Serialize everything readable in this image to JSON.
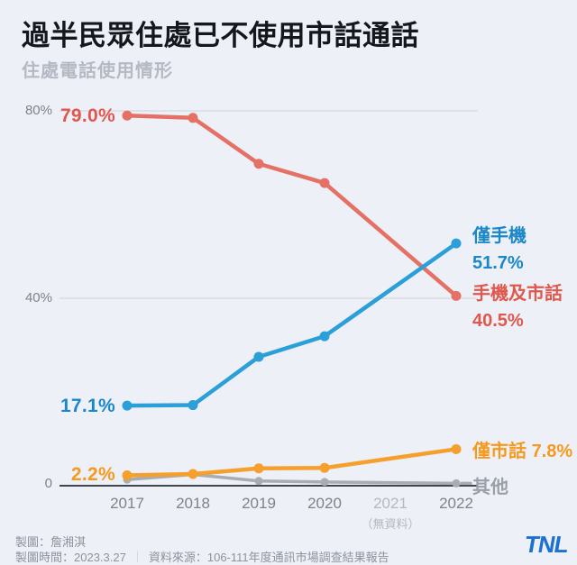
{
  "header": {
    "title": "過半民眾住處已不使用市話通話",
    "subtitle": "住處電話使用情形"
  },
  "chart_data": {
    "type": "line",
    "title": "住處電話使用情形",
    "xlabel": "",
    "ylabel": "",
    "ylim": [
      0,
      80
    ],
    "grid": true,
    "legend_position": "right-of-line-endpoints",
    "x_labels": [
      {
        "label": "2017"
      },
      {
        "label": "2018"
      },
      {
        "label": "2019"
      },
      {
        "label": "2020"
      },
      {
        "label": "2021",
        "muted": true,
        "note": "（無資料）"
      },
      {
        "label": "2022"
      }
    ],
    "yticks": [
      {
        "label": "80%",
        "value": 80
      },
      {
        "label": "40%",
        "value": 40
      },
      {
        "label": "0",
        "value": 0
      }
    ],
    "series": [
      {
        "key": "mobile-and-landline",
        "name": "手機及市話",
        "color": "#e57065",
        "label_color": "#e0584d",
        "width": 4.5,
        "dot_r": 5.5,
        "values": [
          79.0,
          78.5,
          68.7,
          64.6,
          null,
          40.5
        ],
        "start_label": "79.0%",
        "end_label": "40.5%"
      },
      {
        "key": "other",
        "name": "其他",
        "color": "#a9acb2",
        "label_color": "#9aa0a8",
        "width": 3.5,
        "dot_r": 4.5,
        "tail": true,
        "values": [
          1.3,
          2.4,
          1.0,
          0.8,
          null,
          0.5
        ],
        "start_label": "",
        "end_label": ""
      },
      {
        "key": "landline-only",
        "name": "僅市話",
        "color": "#f5a02c",
        "label_color": "#f5991f",
        "width": 4.5,
        "dot_r": 5.5,
        "values": [
          2.2,
          2.5,
          3.7,
          3.8,
          null,
          7.8
        ],
        "start_label": "2.2%",
        "end_label": "7.8%"
      },
      {
        "key": "mobile-only",
        "name": "僅手機",
        "color": "#2b9fd8",
        "label_color": "#1a87c8",
        "width": 4.5,
        "dot_r": 5.5,
        "values": [
          17.1,
          17.2,
          27.5,
          31.9,
          null,
          51.7
        ],
        "start_label": "17.1%",
        "end_label": "51.7%"
      }
    ],
    "no_data_year": "2021"
  },
  "footer": {
    "credit": "製圖：詹湘淇",
    "made_time": "製圖時間：2023.3.27",
    "separator": "｜",
    "source": "資料來源：106-111年度通訊市場調查結果報告",
    "logo": "TNL"
  }
}
